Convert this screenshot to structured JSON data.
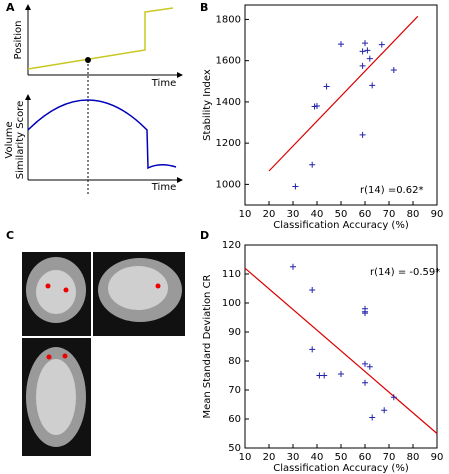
{
  "panel_labels": [
    "A",
    "B",
    "C",
    "D"
  ],
  "schematic": {
    "top_ylabel": "Position",
    "top_xlabel": "Time",
    "bottom_ylabel": [
      "Volume",
      "Similarity Score"
    ],
    "bottom_xlabel": "Time"
  },
  "chart_data": [
    {
      "type": "scatter",
      "xlabel": "Classification Accuracy (%)",
      "ylabel": "Stability Index",
      "x": [
        31,
        38,
        39,
        40,
        44,
        50,
        60,
        59,
        59,
        62,
        63,
        67,
        59,
        72,
        61
      ],
      "y": [
        990,
        1095,
        1378,
        1380,
        1475,
        1680,
        1685,
        1645,
        1575,
        1610,
        1480,
        1678,
        1240,
        1555,
        1650
      ],
      "color": "#2222aa",
      "xlim": [
        10,
        90
      ],
      "xticks": [
        10,
        20,
        30,
        40,
        50,
        60,
        70,
        80,
        90
      ],
      "ylim": [
        900,
        1870
      ],
      "yticks": [
        1000,
        1200,
        1400,
        1600,
        1800
      ],
      "fit": {
        "x": [
          20,
          82
        ],
        "y": [
          1065,
          1815
        ],
        "color": "#dd0000"
      },
      "annotation": "r(14) =0.62*"
    },
    {
      "type": "scatter",
      "xlabel": "Classification Accuracy (%)",
      "ylabel": "Mean Standard Deviation CR",
      "x": [
        30,
        38,
        38,
        41,
        43,
        50,
        60,
        60,
        60,
        60,
        60,
        62,
        63,
        68,
        72
      ],
      "y": [
        112.5,
        104.5,
        84,
        75,
        75,
        75.5,
        98,
        97,
        96.5,
        79,
        72.5,
        78,
        60.5,
        63,
        67.5
      ],
      "color": "#2222aa",
      "xlim": [
        10,
        90
      ],
      "xticks": [
        10,
        20,
        30,
        40,
        50,
        60,
        70,
        80,
        90
      ],
      "ylim": [
        50,
        120
      ],
      "yticks": [
        50,
        60,
        70,
        80,
        90,
        100,
        110,
        120
      ],
      "fit": {
        "x": [
          10,
          90
        ],
        "y": [
          112,
          55
        ],
        "color": "#dd0000"
      },
      "annotation": "r(14) = -0.59*"
    }
  ]
}
